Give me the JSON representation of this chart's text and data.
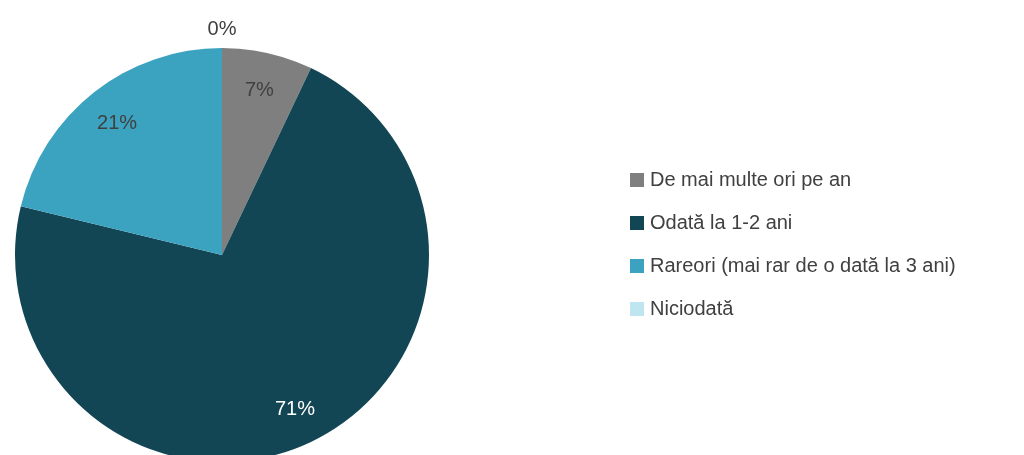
{
  "chart_data": {
    "type": "pie",
    "categories": [
      "De mai multe ori pe an",
      "Odată la 1-2 ani",
      "Rareori (mai rar de o dată la 3 ani)",
      "Niciodată"
    ],
    "values": [
      7,
      71,
      21,
      0
    ],
    "colors": [
      "#7f7f7f",
      "#134655",
      "#3ba3c0",
      "#bfe5f0"
    ],
    "value_labels": [
      "7%",
      "71%",
      "21%",
      "0%"
    ],
    "legend": "right"
  }
}
